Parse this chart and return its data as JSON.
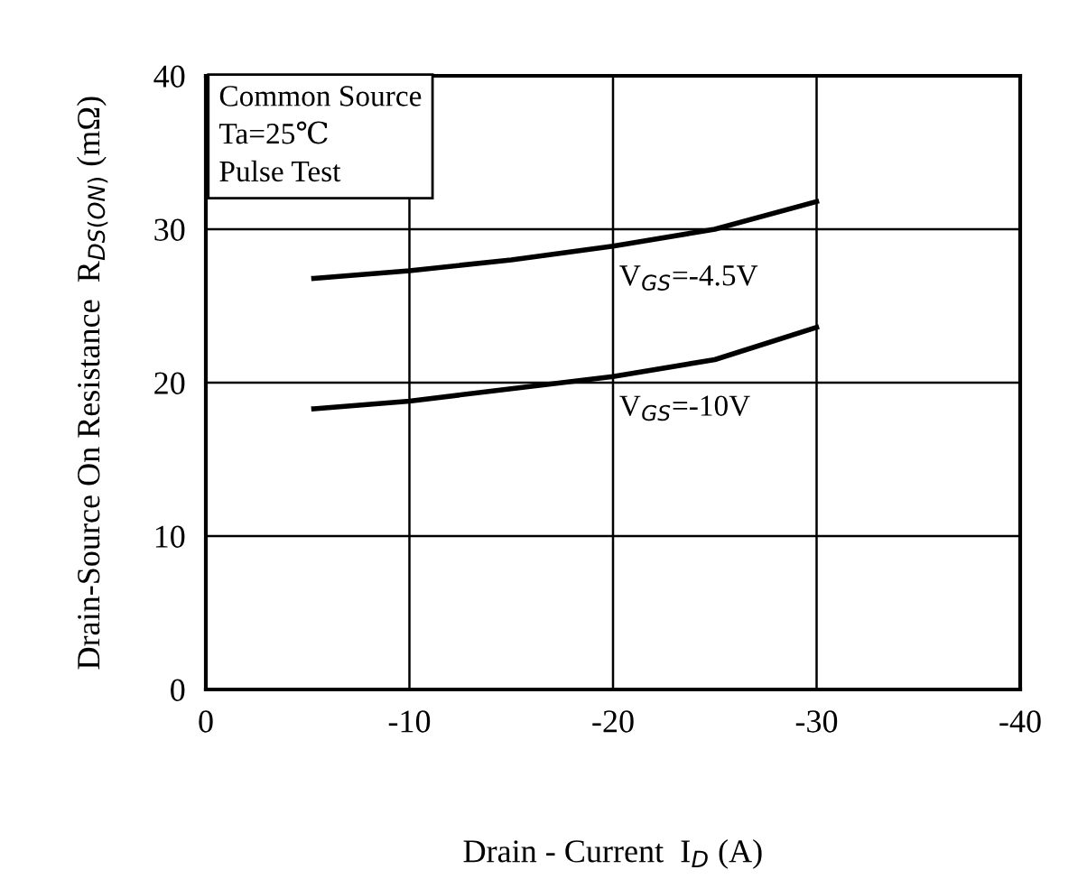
{
  "chart_data": {
    "type": "line",
    "xlabel": "Drain - Current  I$_{D}$ (A)",
    "ylabel": "Drain-Source On Resistance  R$_{DS(ON)}$ (mΩ)",
    "annotations": [
      "Common Source",
      "Ta=25℃",
      "Pulse Test"
    ],
    "x": [
      -5.3,
      -10,
      -15,
      -20,
      -25,
      -30
    ],
    "series": [
      {
        "name": "V$_{GS}$=-4.5V",
        "color": "#000000",
        "values": [
          26.8,
          27.3,
          28.0,
          28.9,
          30.0,
          31.8
        ]
      },
      {
        "name": "V$_{GS}$=-10V",
        "color": "#000000",
        "values": [
          18.3,
          18.8,
          19.6,
          20.4,
          21.5,
          23.6
        ]
      }
    ],
    "xlim": [
      0,
      -40
    ],
    "xticks": [
      0,
      -10,
      -20,
      -30,
      -40
    ],
    "ylim": [
      0,
      40
    ],
    "yticks": [
      0,
      10,
      20,
      30,
      40
    ],
    "grid": true,
    "marker": "none",
    "line_style": "solid",
    "legend": false
  }
}
